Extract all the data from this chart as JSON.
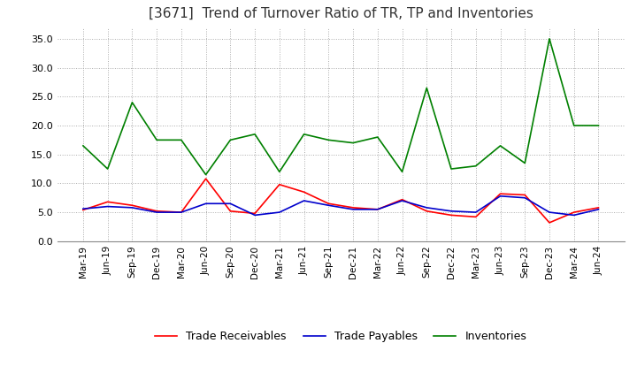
{
  "title": "[3671]  Trend of Turnover Ratio of TR, TP and Inventories",
  "title_fontsize": 11,
  "background_color": "#ffffff",
  "grid_color": "#aaaaaa",
  "ylim": [
    0,
    37
  ],
  "yticks": [
    0.0,
    5.0,
    10.0,
    15.0,
    20.0,
    25.0,
    30.0,
    35.0
  ],
  "ytick_labels": [
    "0.0",
    "5.0",
    "10.0",
    "15.0",
    "20.0",
    "25.0",
    "30.0",
    "35.0"
  ],
  "x_labels": [
    "Mar-19",
    "Jun-19",
    "Sep-19",
    "Dec-19",
    "Mar-20",
    "Jun-20",
    "Sep-20",
    "Dec-20",
    "Mar-21",
    "Jun-21",
    "Sep-21",
    "Dec-21",
    "Mar-22",
    "Jun-22",
    "Sep-22",
    "Dec-22",
    "Mar-23",
    "Jun-23",
    "Sep-23",
    "Dec-23",
    "Mar-24",
    "Jun-24"
  ],
  "trade_receivables": [
    5.4,
    6.8,
    6.2,
    5.2,
    5.0,
    10.8,
    5.2,
    4.8,
    9.8,
    8.5,
    6.5,
    5.8,
    5.5,
    7.2,
    5.2,
    4.5,
    4.2,
    8.2,
    8.0,
    3.2,
    5.0,
    5.8
  ],
  "trade_payables": [
    5.6,
    6.0,
    5.8,
    5.0,
    5.0,
    6.5,
    6.5,
    4.5,
    5.0,
    7.0,
    6.2,
    5.5,
    5.5,
    7.0,
    5.8,
    5.2,
    5.0,
    7.8,
    7.5,
    5.0,
    4.5,
    5.5
  ],
  "inventories": [
    16.5,
    12.5,
    24.0,
    17.5,
    17.5,
    11.5,
    17.5,
    18.5,
    12.0,
    18.5,
    17.5,
    17.0,
    18.0,
    12.0,
    26.5,
    12.5,
    13.0,
    16.5,
    13.5,
    35.0,
    20.0,
    20.0
  ],
  "tr_color": "#ff0000",
  "tp_color": "#0000cc",
  "inv_color": "#008000",
  "legend_labels": [
    "Trade Receivables",
    "Trade Payables",
    "Inventories"
  ],
  "line_width": 1.2
}
